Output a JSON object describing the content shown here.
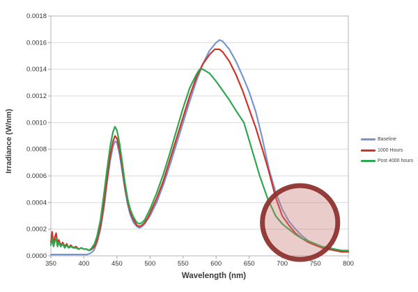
{
  "figure": {
    "background_color": "#ffffff",
    "gridline_color": "#d9d9d9",
    "axis_border_color": "#b3b3b3",
    "tick_color": "#a6a6a6",
    "tick_text_color": "#333333"
  },
  "chart_data": {
    "type": "line",
    "title": "",
    "xlabel": "Wavelength (nm)",
    "ylabel": "Irradiance (W/nm)",
    "xlim": [
      350,
      800
    ],
    "ylim": [
      0,
      0.0018
    ],
    "xticks": [
      350,
      400,
      450,
      500,
      550,
      600,
      650,
      700,
      750,
      800
    ],
    "yticks": [
      0.0,
      0.0002,
      0.0004,
      0.0006,
      0.0008,
      0.001,
      0.0012,
      0.0014,
      0.0016,
      0.0018
    ],
    "grid": "horizontal",
    "legend_position": "right",
    "series": [
      {
        "name": "Baseline",
        "color": "#7496cf",
        "points": [
          [
            350,
            1e-05
          ],
          [
            360,
            1e-05
          ],
          [
            370,
            1e-05
          ],
          [
            380,
            1e-05
          ],
          [
            390,
            1e-05
          ],
          [
            400,
            1e-05
          ],
          [
            405,
            1e-05
          ],
          [
            410,
            2e-05
          ],
          [
            415,
            4e-05
          ],
          [
            420,
            0.0001
          ],
          [
            425,
            0.0002
          ],
          [
            430,
            0.00035
          ],
          [
            435,
            0.00055
          ],
          [
            440,
            0.00072
          ],
          [
            444,
            0.00082
          ],
          [
            447,
            0.00086
          ],
          [
            450,
            0.00085
          ],
          [
            454,
            0.00076
          ],
          [
            458,
            0.00063
          ],
          [
            462,
            0.0005
          ],
          [
            466,
            0.00039
          ],
          [
            470,
            0.00031
          ],
          [
            475,
            0.00025
          ],
          [
            480,
            0.00022
          ],
          [
            484,
            0.00021
          ],
          [
            488,
            0.00022
          ],
          [
            492,
            0.00024
          ],
          [
            496,
            0.00027
          ],
          [
            500,
            0.0003
          ],
          [
            510,
            0.0004
          ],
          [
            520,
            0.00053
          ],
          [
            530,
            0.00068
          ],
          [
            540,
            0.00084
          ],
          [
            550,
            0.001
          ],
          [
            560,
            0.00116
          ],
          [
            570,
            0.00131
          ],
          [
            580,
            0.00144
          ],
          [
            590,
            0.00154
          ],
          [
            600,
            0.0016
          ],
          [
            605,
            0.00162
          ],
          [
            610,
            0.00161
          ],
          [
            620,
            0.00155
          ],
          [
            630,
            0.00146
          ],
          [
            640,
            0.00135
          ],
          [
            650,
            0.00123
          ],
          [
            660,
            0.00108
          ],
          [
            670,
            0.00088
          ],
          [
            680,
            0.00065
          ],
          [
            690,
            0.00048
          ],
          [
            700,
            0.00035
          ],
          [
            710,
            0.00026
          ],
          [
            720,
            0.0002
          ],
          [
            730,
            0.00015
          ],
          [
            740,
            0.00011
          ],
          [
            750,
            9e-05
          ],
          [
            760,
            7e-05
          ],
          [
            770,
            5e-05
          ],
          [
            780,
            4e-05
          ],
          [
            790,
            4e-05
          ],
          [
            800,
            3e-05
          ]
        ]
      },
      {
        "name": "1000 Hours",
        "color": "#cf3327",
        "points": [
          [
            350,
            0.0001
          ],
          [
            352,
            0.00018
          ],
          [
            354,
            8e-05
          ],
          [
            356,
            0.00014
          ],
          [
            358,
            0.00017
          ],
          [
            360,
            9e-05
          ],
          [
            362,
            0.00012
          ],
          [
            365,
            8e-05
          ],
          [
            368,
            0.0001
          ],
          [
            371,
            7e-05
          ],
          [
            374,
            9e-05
          ],
          [
            377,
            6e-05
          ],
          [
            380,
            8e-05
          ],
          [
            384,
            6e-05
          ],
          [
            388,
            7e-05
          ],
          [
            392,
            5e-05
          ],
          [
            396,
            6e-05
          ],
          [
            400,
            5e-05
          ],
          [
            404,
            5e-05
          ],
          [
            408,
            4e-05
          ],
          [
            412,
            5e-05
          ],
          [
            416,
            7e-05
          ],
          [
            420,
            0.00012
          ],
          [
            425,
            0.00022
          ],
          [
            430,
            0.00038
          ],
          [
            435,
            0.00058
          ],
          [
            440,
            0.00076
          ],
          [
            444,
            0.00086
          ],
          [
            447,
            0.0009
          ],
          [
            450,
            0.00088
          ],
          [
            454,
            0.00079
          ],
          [
            458,
            0.00066
          ],
          [
            462,
            0.00052
          ],
          [
            466,
            0.00041
          ],
          [
            470,
            0.00033
          ],
          [
            475,
            0.00027
          ],
          [
            480,
            0.00023
          ],
          [
            484,
            0.00022
          ],
          [
            488,
            0.00023
          ],
          [
            492,
            0.00025
          ],
          [
            496,
            0.00028
          ],
          [
            500,
            0.00032
          ],
          [
            510,
            0.00043
          ],
          [
            520,
            0.00056
          ],
          [
            530,
            0.00072
          ],
          [
            540,
            0.00088
          ],
          [
            550,
            0.00104
          ],
          [
            560,
            0.0012
          ],
          [
            570,
            0.00134
          ],
          [
            580,
            0.00144
          ],
          [
            590,
            0.00151
          ],
          [
            598,
            0.00155
          ],
          [
            605,
            0.00155
          ],
          [
            610,
            0.00153
          ],
          [
            620,
            0.00146
          ],
          [
            630,
            0.00136
          ],
          [
            640,
            0.00124
          ],
          [
            650,
            0.0011
          ],
          [
            660,
            0.00096
          ],
          [
            670,
            0.0008
          ],
          [
            680,
            0.00063
          ],
          [
            690,
            0.00044
          ],
          [
            700,
            0.0003
          ],
          [
            710,
            0.00023
          ],
          [
            720,
            0.00017
          ],
          [
            730,
            0.00013
          ],
          [
            740,
            0.0001
          ],
          [
            750,
            8e-05
          ],
          [
            760,
            6e-05
          ],
          [
            770,
            5e-05
          ],
          [
            780,
            4e-05
          ],
          [
            790,
            3e-05
          ],
          [
            800,
            3e-05
          ]
        ]
      },
      {
        "name": "Post 4000 hours",
        "color": "#2ba84f",
        "points": [
          [
            350,
            8e-05
          ],
          [
            352,
            0.00013
          ],
          [
            354,
            7e-05
          ],
          [
            356,
            0.00011
          ],
          [
            358,
            0.00013
          ],
          [
            360,
            7e-05
          ],
          [
            362,
            0.0001
          ],
          [
            365,
            7e-05
          ],
          [
            368,
            9e-05
          ],
          [
            371,
            6e-05
          ],
          [
            374,
            8e-05
          ],
          [
            377,
            6e-05
          ],
          [
            380,
            7e-05
          ],
          [
            384,
            6e-05
          ],
          [
            388,
            6e-05
          ],
          [
            392,
            5e-05
          ],
          [
            396,
            6e-05
          ],
          [
            400,
            5e-05
          ],
          [
            404,
            5e-05
          ],
          [
            408,
            4e-05
          ],
          [
            412,
            6e-05
          ],
          [
            416,
            9e-05
          ],
          [
            420,
            0.00015
          ],
          [
            425,
            0.00027
          ],
          [
            430,
            0.00045
          ],
          [
            435,
            0.00065
          ],
          [
            440,
            0.00083
          ],
          [
            444,
            0.00093
          ],
          [
            447,
            0.00097
          ],
          [
            450,
            0.00094
          ],
          [
            454,
            0.00084
          ],
          [
            458,
            0.0007
          ],
          [
            462,
            0.00055
          ],
          [
            466,
            0.00043
          ],
          [
            470,
            0.00035
          ],
          [
            475,
            0.00029
          ],
          [
            480,
            0.00025
          ],
          [
            484,
            0.00024
          ],
          [
            488,
            0.00025
          ],
          [
            492,
            0.00027
          ],
          [
            496,
            0.00031
          ],
          [
            500,
            0.00035
          ],
          [
            510,
            0.00047
          ],
          [
            520,
            0.00061
          ],
          [
            530,
            0.00077
          ],
          [
            540,
            0.00094
          ],
          [
            550,
            0.00111
          ],
          [
            560,
            0.00126
          ],
          [
            570,
            0.00136
          ],
          [
            575,
            0.0014
          ],
          [
            580,
            0.0014
          ],
          [
            590,
            0.00137
          ],
          [
            600,
            0.00131
          ],
          [
            610,
            0.00124
          ],
          [
            620,
            0.00117
          ],
          [
            630,
            0.00109
          ],
          [
            642,
            0.001
          ],
          [
            654,
            0.0008
          ],
          [
            666,
            0.0006
          ],
          [
            678,
            0.00043
          ],
          [
            690,
            0.0003
          ],
          [
            700,
            0.00024
          ],
          [
            710,
            0.0002
          ],
          [
            720,
            0.00016
          ],
          [
            730,
            0.00013
          ],
          [
            740,
            0.00011
          ],
          [
            750,
            9e-05
          ],
          [
            760,
            7e-05
          ],
          [
            770,
            6e-05
          ],
          [
            780,
            5e-05
          ],
          [
            790,
            4e-05
          ],
          [
            800,
            4e-05
          ]
        ]
      }
    ],
    "annotation": {
      "type": "ellipse-highlight",
      "center_nm": 727,
      "radius_nm": 57,
      "center_value": 0.00025,
      "radius_value": 0.000277,
      "stroke_color": "#8e3330",
      "fill_color": "#c97c74"
    }
  }
}
